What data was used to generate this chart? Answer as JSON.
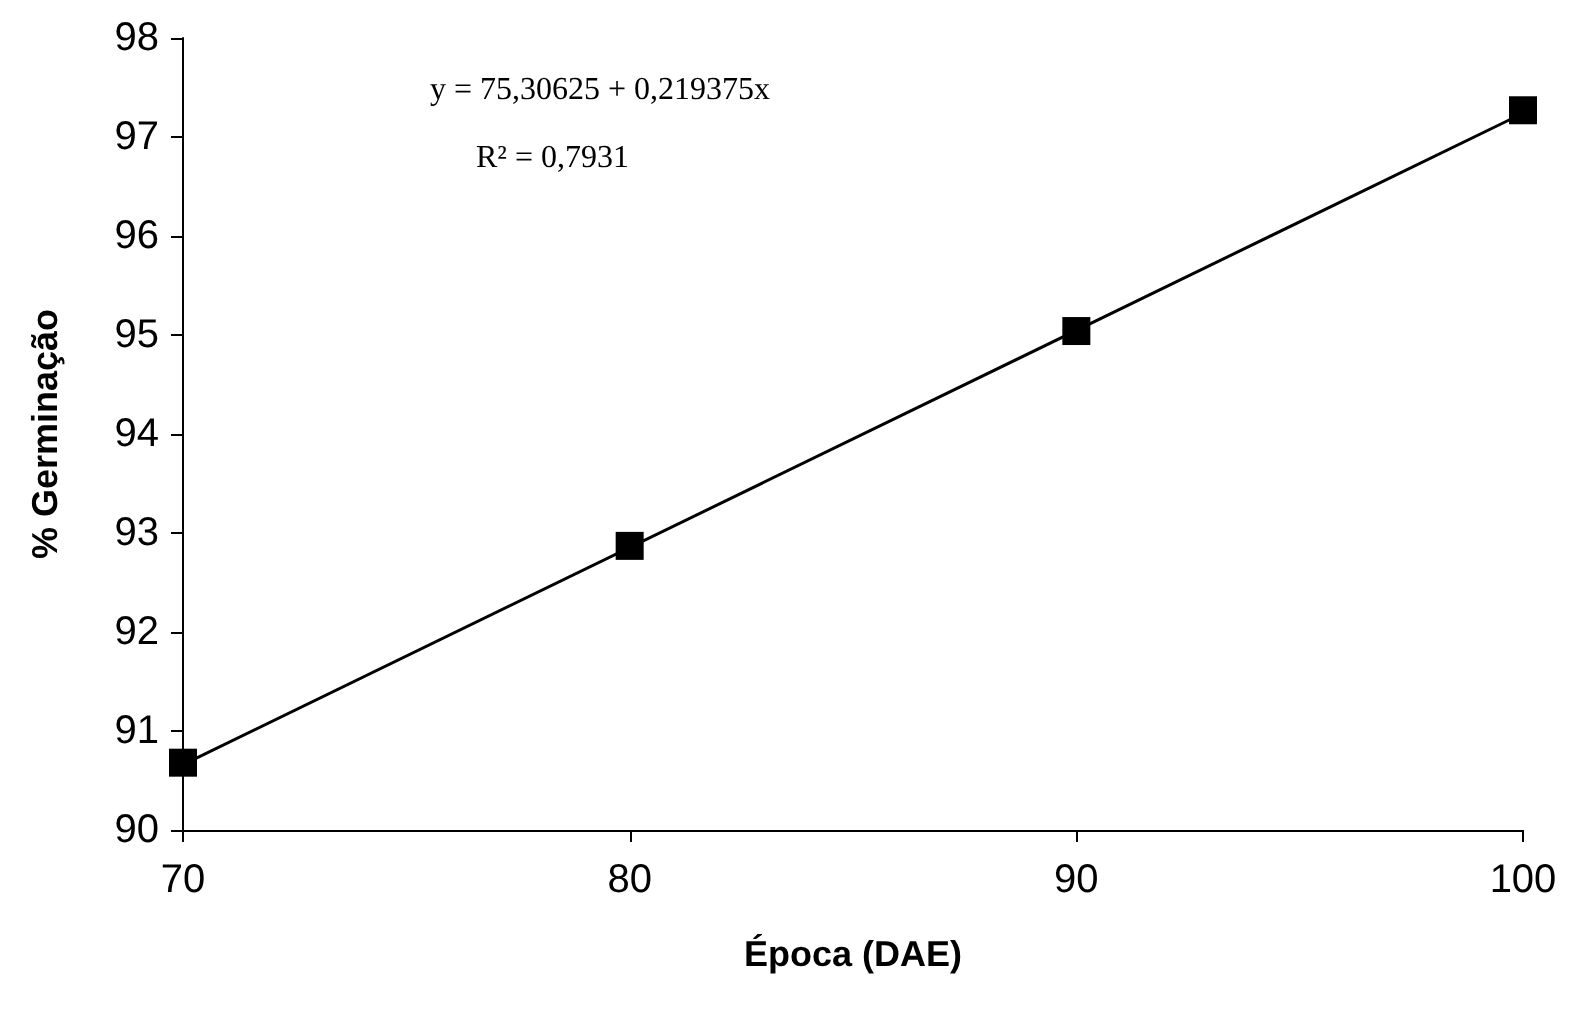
{
  "chart_data": {
    "type": "scatter",
    "xlabel": "Época (DAE)",
    "ylabel": "% Germinação",
    "annotations": [
      "y = 75,30625 + 0,219375x",
      "R² = 0,7931"
    ],
    "x": [
      70,
      80,
      90,
      100
    ],
    "series": [
      {
        "color": "#000000",
        "marker": "square",
        "values": [
          90.68,
          92.87,
          95.04,
          97.27
        ]
      },
      {
        "type": "line",
        "color": "#000000",
        "marker": "none",
        "line_style": "solid",
        "x": [
          70,
          100
        ],
        "values": [
          90.66,
          97.24
        ]
      }
    ],
    "xlim": [
      70,
      100
    ],
    "xticks": [
      70,
      80,
      90,
      100
    ],
    "ylim": [
      90,
      98
    ],
    "yticks": [
      90,
      91,
      92,
      93,
      94,
      95,
      96,
      97,
      98
    ],
    "grid": false
  }
}
